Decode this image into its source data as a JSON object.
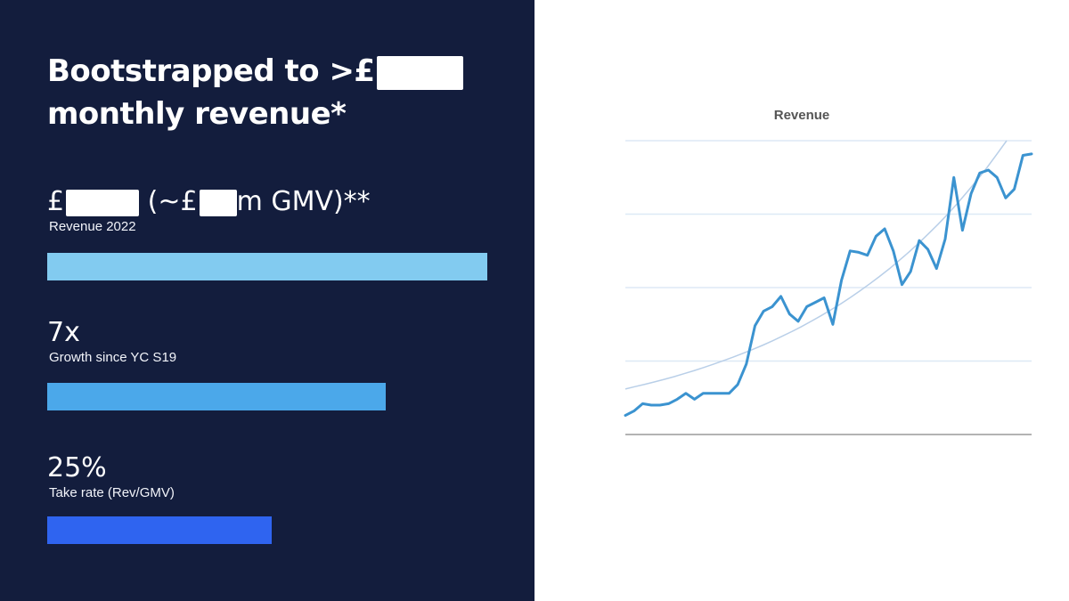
{
  "slide": {
    "headline_line1": "Bootstrapped to >£",
    "headline_line2": "monthly revenue*"
  },
  "stats": [
    {
      "value_prefix": "£",
      "value_middle": " (~£",
      "value_suffix": "m GMV)**",
      "label": "Revenue 2022",
      "bar_fraction": 1.0,
      "bar_color": "#82cbf0"
    },
    {
      "value": "7x",
      "label": "Growth since YC S19",
      "bar_fraction": 0.77,
      "bar_color": "#4ba8ea"
    },
    {
      "value": "25%",
      "label": "Take rate (Rev/GMV)",
      "bar_fraction": 0.51,
      "bar_color": "#2f64f0"
    }
  ],
  "colors": {
    "panel_background": "#131d3d",
    "redaction": "#ffffff",
    "line": "#3b93d0",
    "trendline": "#b9cfe8",
    "gridline": "#dde9f6",
    "axis": "#9a9a9a",
    "title": "#555555"
  },
  "chart_data": {
    "type": "line",
    "title": "Revenue",
    "xlabel": "",
    "ylabel": "",
    "grid": true,
    "legend": "none",
    "ylim": [
      0,
      100
    ],
    "yticks": [
      0,
      25,
      50,
      75,
      100
    ],
    "series": [
      {
        "values": [
          6.5,
          8,
          10.5,
          10,
          10,
          10.5,
          12,
          14,
          12,
          14,
          14,
          14,
          14,
          17,
          24,
          37,
          42,
          43.5,
          47,
          41,
          38.5,
          43.5,
          45,
          46.5,
          37.5,
          52.5,
          62.5,
          62,
          61,
          67.5,
          70,
          62.5,
          51,
          55.5,
          66,
          63,
          56.5,
          66.5,
          87.5,
          69.5,
          82,
          89,
          90,
          87.5,
          80.5,
          83.5,
          95,
          95.5
        ]
      }
    ],
    "trendline": {
      "type": "exponential",
      "values": [
        15.5,
        16.3,
        17.1,
        17.9,
        18.8,
        19.7,
        20.7,
        21.7,
        22.8,
        23.9,
        25.1,
        26.3,
        27.6,
        28.9,
        30.3,
        31.8,
        33.4,
        35,
        36.7,
        38.5,
        40.4,
        42.4,
        44.4,
        46.6,
        48.9,
        51.3,
        53.8,
        56.4,
        59.2,
        62.1,
        65.1,
        68.3,
        71.6,
        75.1,
        78.8,
        82.7,
        86.7,
        90.9,
        95.4,
        100
      ]
    }
  }
}
